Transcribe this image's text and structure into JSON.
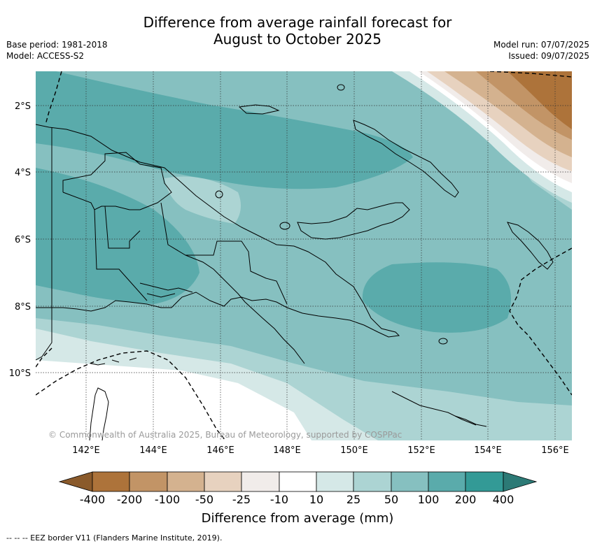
{
  "title_line1": "Difference from average rainfall forecast for",
  "title_line2": "August to October 2025",
  "base_period": "Base period: 1981-2018",
  "model": "Model: ACCESS-S2",
  "model_run": "Model run: 07/07/2025",
  "issued": "Issued: 09/07/2025",
  "map": {
    "lat_labels": [
      "2°S",
      "4°S",
      "6°S",
      "8°S",
      "10°S"
    ],
    "lon_labels": [
      "142°E",
      "144°E",
      "146°E",
      "148°E",
      "150°E",
      "152°E",
      "154°E",
      "156°E"
    ],
    "copyright": "© Commonwealth of Australia 2025, Bureau of Meteorology, supported by COSPPac",
    "colors": {
      "lt_neg400": "#8a5a2b",
      "neg400_neg200": "#ad733a",
      "neg200_neg100": "#c29466",
      "neg100_neg50": "#d4b28f",
      "neg50_neg25": "#e7d2bf",
      "neg25_neg10": "#f1ecea",
      "neg10_10": "#ffffff",
      "10_25": "#d5e8e7",
      "25_50": "#acd4d3",
      "50_100": "#86c0c0",
      "100_200": "#5aabab",
      "200_400": "#339a96",
      "gt_400": "#2c7a76"
    }
  },
  "colorbar": {
    "labels": [
      "-400",
      "-200",
      "-100",
      "-50",
      "-25",
      "-10",
      "10",
      "25",
      "50",
      "100",
      "200",
      "400"
    ],
    "title": "Difference from average (mm)"
  },
  "footnote": "--  --  -- EEZ border V11 (Flanders Marine Institute, 2019)."
}
